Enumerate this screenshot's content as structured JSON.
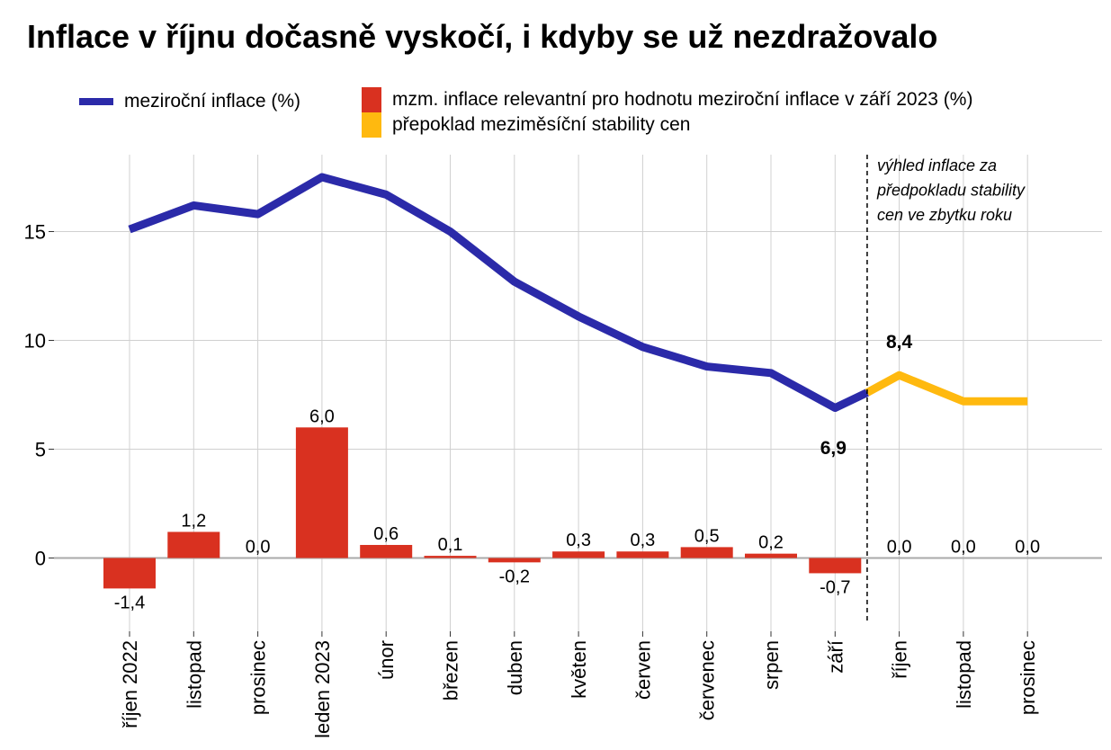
{
  "title": "Inflace v říjnu dočasně vyskočí, i kdyby se už nezdražovalo",
  "colors": {
    "line": "#2b2aa9",
    "bar": "#d93120",
    "forecast": "#ffb90f",
    "grid": "#d0d0d0"
  },
  "legend": [
    {
      "key": "line",
      "label": "meziroční inflace (%)"
    },
    {
      "key": "bar",
      "label": "mzm. inflace relevantní pro hodnotu meziroční inflace v září 2023 (%)"
    },
    {
      "key": "forecast",
      "label": "přepoklad meziměsíční stability cen"
    }
  ],
  "chart_data": {
    "type": "bar+line",
    "categories": [
      "říjen 2022",
      "listopad",
      "prosinec",
      "leden 2023",
      "únor",
      "březen",
      "duben",
      "květen",
      "červen",
      "červenec",
      "srpen",
      "září",
      "říjen",
      "listopad",
      "prosinec"
    ],
    "series": [
      {
        "type": "bar",
        "name": "mzm. inflace relevantní pro hodnotu meziroční inflace v září 2023 (%)",
        "values": [
          -1.4,
          1.2,
          0.0,
          6.0,
          0.6,
          0.1,
          -0.2,
          0.3,
          0.3,
          0.5,
          0.2,
          -0.7,
          0.0,
          0.0,
          0.0
        ],
        "labels": [
          "-1,4",
          "1,2",
          "0,0",
          "6,0",
          "0,6",
          "0,1",
          "-0,2",
          "0,3",
          "0,3",
          "0,5",
          "0,2",
          "-0,7",
          "0,0",
          "0,0",
          "0,0"
        ]
      },
      {
        "type": "line",
        "name": "meziroční inflace (%)",
        "values": [
          15.1,
          16.2,
          15.8,
          17.5,
          16.7,
          15.0,
          12.7,
          11.1,
          9.7,
          8.8,
          8.5,
          6.9,
          null,
          null,
          null
        ]
      },
      {
        "type": "line",
        "name": "přepoklad meziměsíční stability cen",
        "x": [
          11.5,
          12,
          13,
          14
        ],
        "values": [
          7.6,
          8.4,
          7.2,
          7.2
        ]
      }
    ],
    "point_labels": [
      {
        "category_index": 11,
        "text": "6,9"
      },
      {
        "category_index": 12,
        "text": "8,4"
      }
    ],
    "annotation": "výhled inflace za předpokladu stability cen ve zbytku roku",
    "yticks": [
      0,
      5,
      10,
      15
    ],
    "ylim": [
      -3,
      18.5
    ],
    "grid": true
  }
}
